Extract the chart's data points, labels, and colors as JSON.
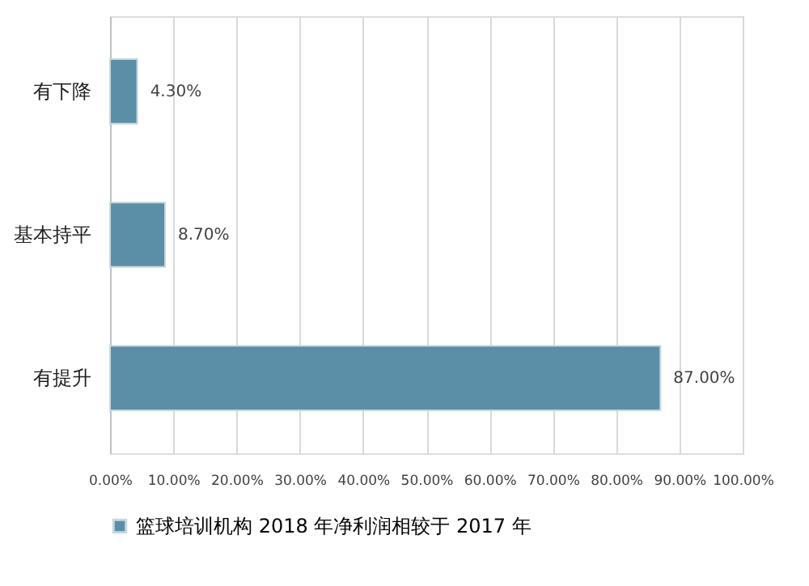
{
  "chart_data": {
    "type": "bar",
    "orientation": "horizontal",
    "categories": [
      "有下降",
      "基本持平",
      "有提升"
    ],
    "series": [
      {
        "name": "篮球培训机构  2018  年净利润相较于  2017  年",
        "color": "#5b8fa8",
        "values": [
          4.3,
          8.7,
          87.0
        ],
        "value_labels": [
          "4.30%",
          "8.70%",
          "87.00%"
        ]
      }
    ],
    "xlim": [
      0,
      100
    ],
    "xticks": [
      {
        "value": 0,
        "label": "0.00%"
      },
      {
        "value": 10,
        "label": "10.00%"
      },
      {
        "value": 20,
        "label": "20.00%"
      },
      {
        "value": 30,
        "label": "30.00%"
      },
      {
        "value": 40,
        "label": "40.00%"
      },
      {
        "value": 50,
        "label": "50.00%"
      },
      {
        "value": 60,
        "label": "60.00%"
      },
      {
        "value": 70,
        "label": "70.00%"
      },
      {
        "value": 80,
        "label": "80.00%"
      },
      {
        "value": 90,
        "label": "90.00%"
      },
      {
        "value": 100,
        "label": "100.00%"
      }
    ],
    "grid": "x",
    "legend": "bottom"
  }
}
